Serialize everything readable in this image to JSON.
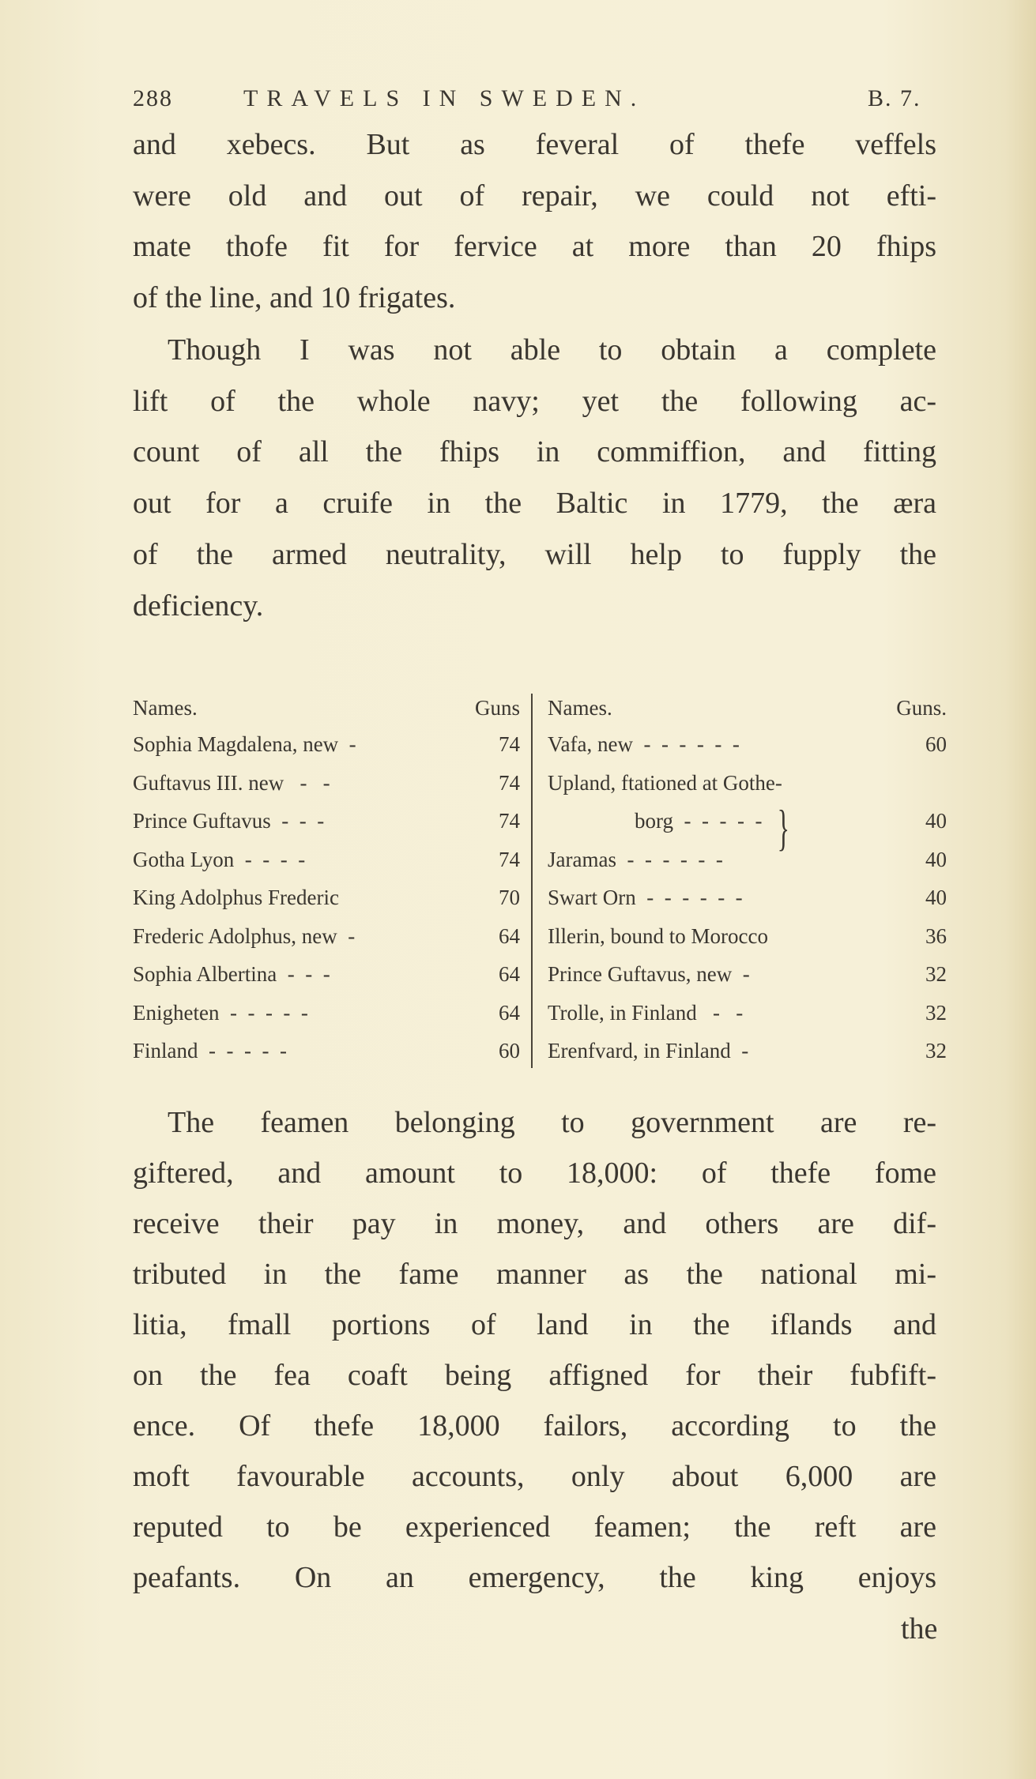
{
  "header": {
    "page_number": "288",
    "running_title": "TRAVELS IN SWEDEN.",
    "book": "B. 7."
  },
  "paragraph1": [
    "and xebecs. But as feveral of thefe veffels",
    "were old and out of repair, we could not efti-",
    "mate thofe fit for fervice at more than 20 fhips",
    "of the line, and 10 frigates."
  ],
  "paragraph2": [
    "Though I was not able to obtain a complete",
    "lift of the whole navy; yet the following ac-",
    "count of all the fhips in commiffion, and fitting",
    "out for a cruife in the Baltic in 1779, the æra",
    "of the armed neutrality, will help to fupply the",
    "deficiency."
  ],
  "table": {
    "left": {
      "header_name": "Names.",
      "header_guns": "Guns",
      "rows": [
        {
          "name": "Sophia Magdalena, new  -",
          "guns": "74"
        },
        {
          "name": "Guftavus III. new   -   -",
          "guns": "74"
        },
        {
          "name": "Prince Guftavus  -  -  -",
          "guns": "74"
        },
        {
          "name": "Gotha Lyon  -  -  -  -",
          "guns": "74"
        },
        {
          "name": "King Adolphus Frederic",
          "guns": "70"
        },
        {
          "name": "Frederic Adolphus, new  -",
          "guns": "64"
        },
        {
          "name": "Sophia Albertina  -  -  -",
          "guns": "64"
        },
        {
          "name": "Enigheten  -  -  -  -  -",
          "guns": "64"
        },
        {
          "name": "Finland  -  -  -  -  -",
          "guns": "60"
        }
      ]
    },
    "right": {
      "header_name": "Names.",
      "header_guns": "Guns.",
      "rows": [
        {
          "name": "Vafa, new  -  -  -  -  -  -",
          "guns": "60"
        },
        {
          "name": "Upland, ftationed at Gothe-",
          "guns": ""
        },
        {
          "name": "borg  -  -  -  -  -",
          "guns": "40"
        },
        {
          "name": "Jaramas  -  -  -  -  -  -",
          "guns": "40"
        },
        {
          "name": "Swart Orn  -  -  -  -  -  -",
          "guns": "40"
        },
        {
          "name": "Illerin, bound to Morocco",
          "guns": "36"
        },
        {
          "name": "Prince Guftavus, new  -",
          "guns": "32"
        },
        {
          "name": "Trolle, in Finland   -   -",
          "guns": "32"
        },
        {
          "name": "Erenfvard, in Finland  -",
          "guns": "32"
        }
      ]
    }
  },
  "paragraph3": [
    "The feamen belonging to government are re-",
    "giftered, and amount to 18,000: of thefe fome",
    "receive their pay in money, and others are dif-",
    "tributed in the fame manner as the national mi-",
    "litia, fmall portions of land in the iflands and",
    "on the fea coaft being affigned for their fubfift-",
    "ence. Of thefe 18,000 failors, according to the",
    "moft favourable accounts, only about 6,000 are",
    "reputed to be experienced feamen; the reft are",
    "peafants. On an emergency, the king enjoys"
  ],
  "catchword": "the"
}
